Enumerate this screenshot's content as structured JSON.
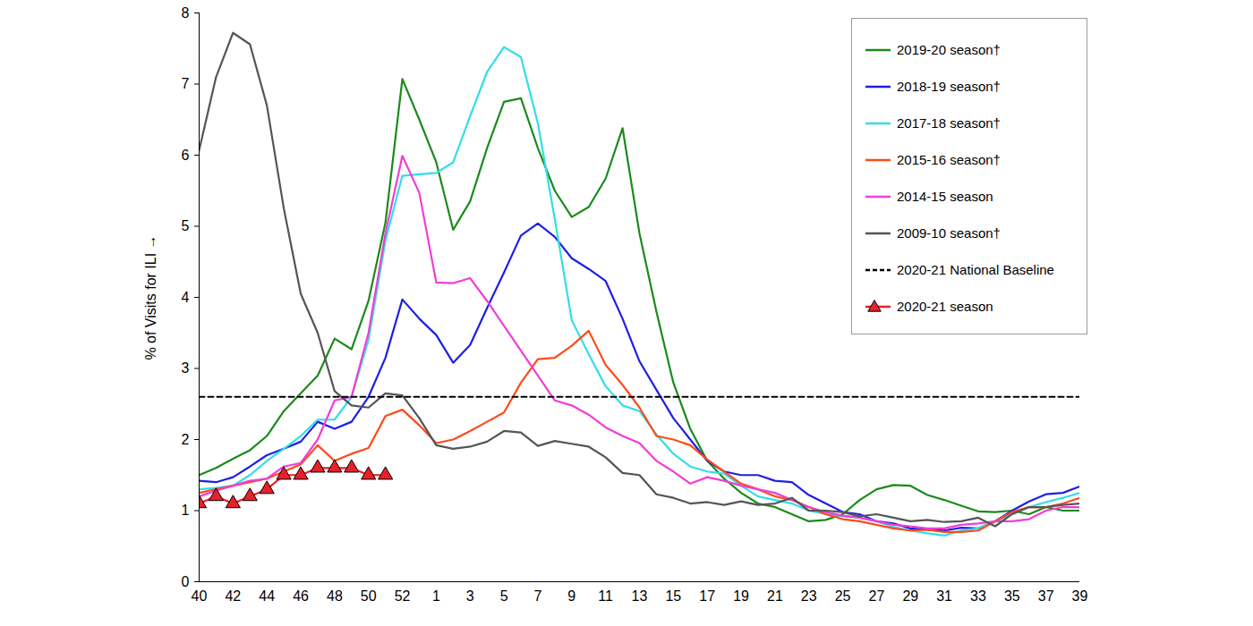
{
  "chart_data": {
    "type": "line",
    "y_label": "% of Visits for ILI",
    "categories": [
      "40",
      null,
      "42",
      null,
      "44",
      null,
      "46",
      null,
      "48",
      null,
      "50",
      null,
      "52",
      null,
      "1",
      null,
      "3",
      null,
      "5",
      null,
      "7",
      null,
      "9",
      null,
      "11",
      null,
      "13",
      null,
      "15",
      null,
      "17",
      null,
      "19",
      null,
      "21",
      null,
      "23",
      null,
      "25",
      null,
      "27",
      null,
      "29",
      null,
      "31",
      null,
      "33",
      null,
      "35",
      null,
      "37",
      null,
      "39"
    ],
    "ylim": [
      0,
      8
    ],
    "yticks": [
      0,
      1,
      2,
      3,
      4,
      5,
      6,
      7,
      8
    ],
    "grid": false,
    "legend": "top-right",
    "series": [
      {
        "name": "2019-20 season†",
        "color": "#1b8a1b",
        "values": [
          1.5,
          1.6,
          1.73,
          1.85,
          2.05,
          2.4,
          2.65,
          2.9,
          3.42,
          3.27,
          3.95,
          5.05,
          7.07,
          6.5,
          5.9,
          4.95,
          5.35,
          6.1,
          6.75,
          6.8,
          6.1,
          5.5,
          5.13,
          5.27,
          5.67,
          6.38,
          4.9,
          3.8,
          2.8,
          2.15,
          1.7,
          1.45,
          1.25,
          1.1,
          1.05,
          0.95,
          0.85,
          0.87,
          0.95,
          1.15,
          1.3,
          1.36,
          1.35,
          1.22,
          1.15,
          1.07,
          0.99,
          0.98,
          1.0,
          0.95,
          1.05,
          1.0,
          1.0
        ]
      },
      {
        "name": "2018-19 season†",
        "color": "#1f1fe6",
        "values": [
          1.42,
          1.4,
          1.47,
          1.62,
          1.78,
          1.87,
          1.97,
          2.25,
          2.15,
          2.25,
          2.6,
          3.15,
          3.97,
          3.7,
          3.47,
          3.08,
          3.33,
          3.85,
          4.35,
          4.87,
          5.04,
          4.85,
          4.55,
          4.4,
          4.23,
          3.7,
          3.1,
          2.7,
          2.3,
          2.0,
          1.7,
          1.55,
          1.5,
          1.5,
          1.42,
          1.4,
          1.22,
          1.1,
          0.98,
          0.95,
          0.85,
          0.82,
          0.75,
          0.73,
          0.72,
          0.76,
          0.75,
          0.85,
          1.0,
          1.13,
          1.23,
          1.25,
          1.34
        ]
      },
      {
        "name": "2017-18 season†",
        "color": "#33dde8",
        "values": [
          1.3,
          1.32,
          1.35,
          1.5,
          1.7,
          1.87,
          2.05,
          2.28,
          2.28,
          2.6,
          3.4,
          4.8,
          5.71,
          5.73,
          5.75,
          5.9,
          6.55,
          7.17,
          7.52,
          7.38,
          6.45,
          5.1,
          3.68,
          3.2,
          2.75,
          2.48,
          2.4,
          2.07,
          1.8,
          1.62,
          1.55,
          1.52,
          1.35,
          1.2,
          1.15,
          1.1,
          1.0,
          0.95,
          0.92,
          0.9,
          0.85,
          0.77,
          0.72,
          0.68,
          0.65,
          0.72,
          0.75,
          0.85,
          0.95,
          1.05,
          1.12,
          1.18,
          1.25
        ]
      },
      {
        "name": "2015-16 season†",
        "color": "#ff4a1a",
        "values": [
          1.25,
          1.3,
          1.35,
          1.4,
          1.45,
          1.55,
          1.65,
          1.92,
          1.7,
          1.8,
          1.88,
          2.33,
          2.42,
          2.2,
          1.95,
          2.0,
          2.12,
          2.25,
          2.38,
          2.8,
          3.13,
          3.15,
          3.32,
          3.53,
          3.05,
          2.77,
          2.45,
          2.05,
          2.0,
          1.92,
          1.72,
          1.55,
          1.38,
          1.3,
          1.2,
          1.15,
          1.05,
          0.95,
          0.88,
          0.85,
          0.8,
          0.75,
          0.72,
          0.73,
          0.7,
          0.7,
          0.72,
          0.85,
          0.98,
          1.05,
          1.05,
          1.1,
          1.18
        ]
      },
      {
        "name": "2014-15 season",
        "color": "#f03ed6",
        "values": [
          1.2,
          1.28,
          1.35,
          1.42,
          1.45,
          1.62,
          1.67,
          2.0,
          2.55,
          2.6,
          3.5,
          4.9,
          5.99,
          5.47,
          4.21,
          4.2,
          4.27,
          3.95,
          3.6,
          3.25,
          2.9,
          2.55,
          2.48,
          2.35,
          2.17,
          2.05,
          1.95,
          1.7,
          1.55,
          1.38,
          1.47,
          1.42,
          1.35,
          1.3,
          1.25,
          1.15,
          1.05,
          0.98,
          0.93,
          0.9,
          0.85,
          0.8,
          0.78,
          0.75,
          0.75,
          0.8,
          0.82,
          0.85,
          0.85,
          0.88,
          1.0,
          1.05,
          1.05
        ]
      },
      {
        "name": "2009-10 season†",
        "color": "#555555",
        "values": [
          6.07,
          7.1,
          7.72,
          7.56,
          6.7,
          5.25,
          4.05,
          3.5,
          2.68,
          2.48,
          2.45,
          2.65,
          2.62,
          2.3,
          1.92,
          1.87,
          1.9,
          1.97,
          2.12,
          2.1,
          1.91,
          1.98,
          1.94,
          1.9,
          1.75,
          1.53,
          1.5,
          1.23,
          1.18,
          1.1,
          1.12,
          1.08,
          1.13,
          1.08,
          1.1,
          1.18,
          1.0,
          1.0,
          0.98,
          0.92,
          0.95,
          0.9,
          0.85,
          0.87,
          0.84,
          0.85,
          0.9,
          0.78,
          0.95,
          1.05,
          1.05,
          1.08,
          1.1
        ]
      },
      {
        "name": "2020-21 National Baseline",
        "color": "#000000",
        "line_style": "dashed",
        "values": [
          2.6,
          2.6,
          2.6,
          2.6,
          2.6,
          2.6,
          2.6,
          2.6,
          2.6,
          2.6,
          2.6,
          2.6,
          2.6,
          2.6,
          2.6,
          2.6,
          2.6,
          2.6,
          2.6,
          2.6,
          2.6,
          2.6,
          2.6,
          2.6,
          2.6,
          2.6,
          2.6,
          2.6,
          2.6,
          2.6,
          2.6,
          2.6,
          2.6,
          2.6,
          2.6,
          2.6,
          2.6,
          2.6,
          2.6,
          2.6,
          2.6,
          2.6,
          2.6,
          2.6,
          2.6,
          2.6,
          2.6,
          2.6,
          2.6,
          2.6,
          2.6,
          2.6,
          2.6
        ]
      },
      {
        "name": "2020-21 season",
        "color": "#e8202a",
        "marker": "triangle",
        "values": [
          1.1,
          1.2,
          1.1,
          1.2,
          1.3,
          1.5,
          1.5,
          1.6,
          1.6,
          1.6,
          1.5,
          1.5,
          null,
          null,
          null,
          null,
          null,
          null,
          null,
          null,
          null,
          null,
          null,
          null,
          null,
          null,
          null,
          null,
          null,
          null,
          null,
          null,
          null,
          null,
          null,
          null,
          null,
          null,
          null,
          null,
          null,
          null,
          null,
          null,
          null,
          null,
          null,
          null,
          null,
          null,
          null,
          null,
          null
        ]
      }
    ]
  }
}
